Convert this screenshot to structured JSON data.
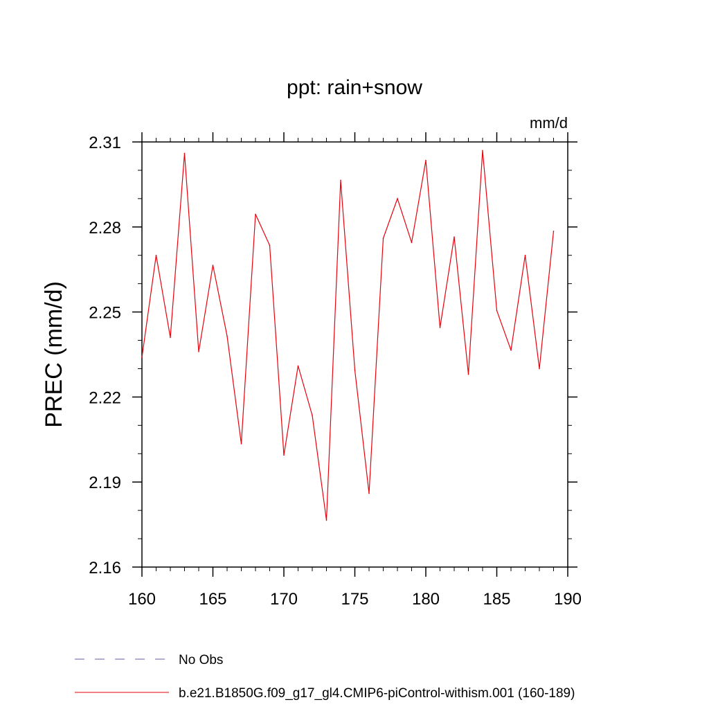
{
  "chart_data": {
    "type": "line",
    "title": "ppt: rain+snow",
    "units": "mm/d",
    "ylabel": "PREC  (mm/d)",
    "xlabel": "",
    "xlim": [
      160,
      190
    ],
    "ylim": [
      2.16,
      2.31
    ],
    "xticks": [
      160,
      165,
      170,
      175,
      180,
      185,
      190
    ],
    "yticks": [
      2.16,
      2.19,
      2.22,
      2.25,
      2.28,
      2.31
    ],
    "x": [
      160,
      161,
      162,
      163,
      164,
      165,
      166,
      167,
      168,
      169,
      170,
      171,
      172,
      173,
      174,
      175,
      176,
      177,
      178,
      179,
      180,
      181,
      182,
      183,
      184,
      185,
      186,
      187,
      188,
      189
    ],
    "series": [
      {
        "name": "b.e21.B1850G.f09_g17_gl4.CMIP6-piControl-withism.001 (160-189)",
        "color": "#e8000b",
        "style": "solid",
        "values": [
          2.234,
          2.27,
          2.241,
          2.306,
          2.236,
          2.2665,
          2.2415,
          2.2035,
          2.2845,
          2.2735,
          2.1995,
          2.231,
          2.2135,
          2.1765,
          2.2965,
          2.2295,
          2.186,
          2.276,
          2.29,
          2.2745,
          2.3035,
          2.2445,
          2.2765,
          2.228,
          2.307,
          2.2505,
          2.2365,
          2.27,
          2.23,
          2.2785
        ]
      }
    ],
    "legend": [
      {
        "label": "No Obs",
        "color": "#5c5ca8",
        "style": "dashed"
      },
      {
        "label": "b.e21.B1850G.f09_g17_gl4.CMIP6-piControl-withism.001 (160-189)",
        "color": "#e8000b",
        "style": "solid"
      }
    ],
    "legend_position": "bottom-left"
  }
}
